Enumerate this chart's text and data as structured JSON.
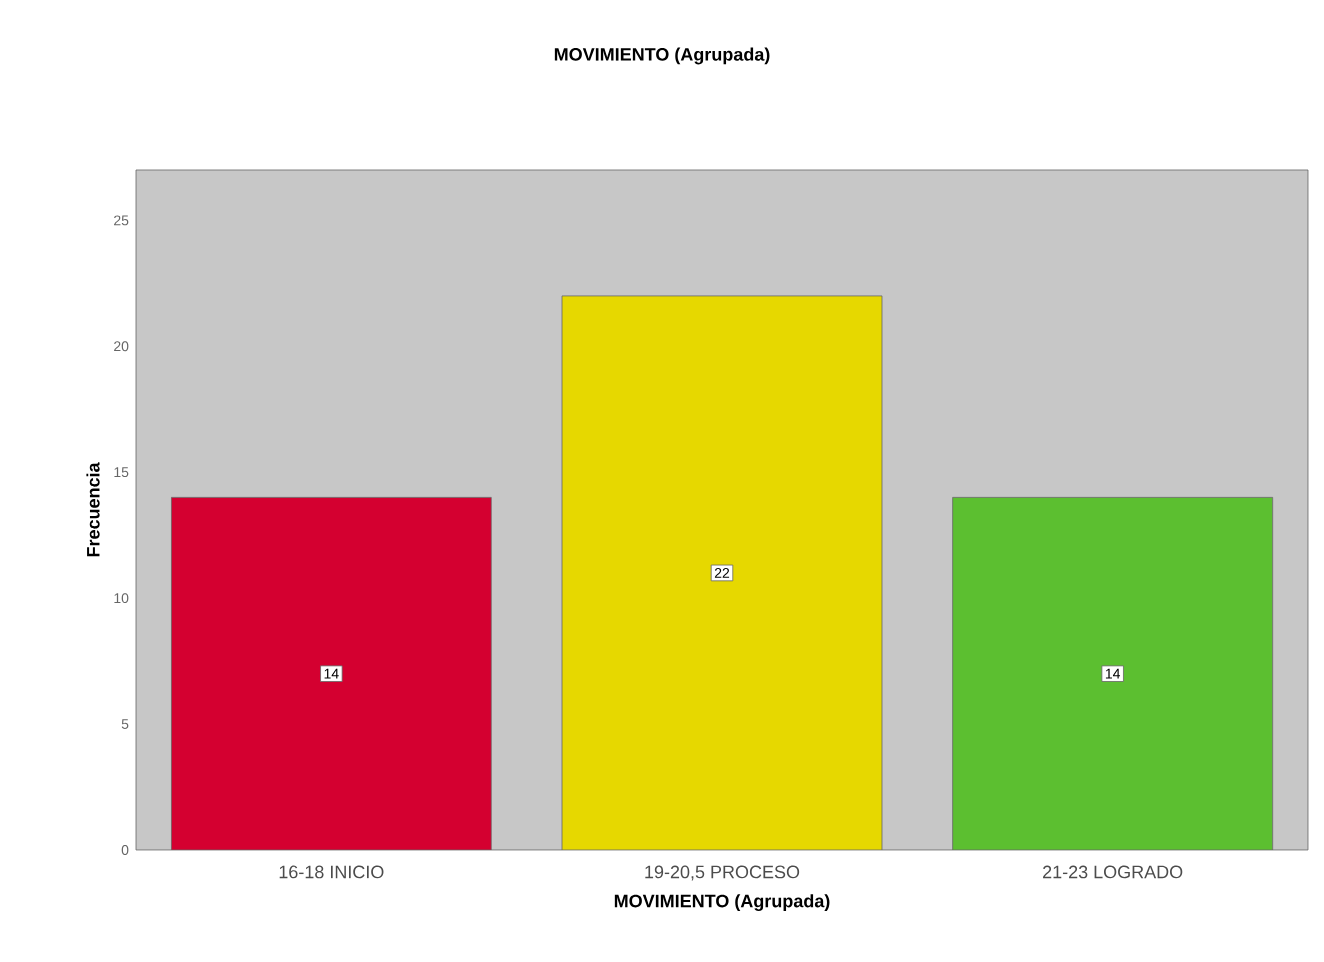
{
  "chart_data": {
    "type": "bar",
    "title": "MOVIMIENTO (Agrupada)",
    "xlabel": "MOVIMIENTO (Agrupada)",
    "ylabel": "Frecuencia",
    "categories": [
      "16-18 INICIO",
      "19-20,5 PROCESO",
      "21-23 LOGRADO"
    ],
    "values": [
      14,
      22,
      14
    ],
    "colors": [
      "#d40030",
      "#e6d800",
      "#5cbf30"
    ],
    "ylim": [
      0,
      27
    ],
    "yticks": [
      0,
      5,
      10,
      15,
      20,
      25
    ],
    "grid": false,
    "data_labels": true
  }
}
